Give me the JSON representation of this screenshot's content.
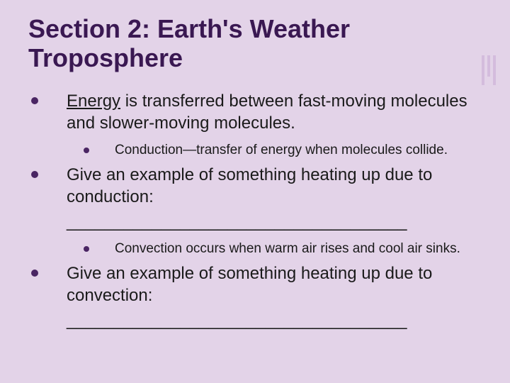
{
  "title": "Section 2: Earth's Weather Troposphere",
  "bullets": {
    "p1_lead": "Energy",
    "p1_rest": " is transferred between fast-moving molecules and slower-moving molecules.",
    "p1_sub": "Conduction—transfer of energy when molecules collide.",
    "p2": "Give an example of something heating up due to conduction:",
    "p2_blank": "____________________________________",
    "p2_sub": "Convection occurs when warm air rises and cool air sinks.",
    "p3": "Give an example of something heating up due to convection:",
    "p3_blank": "____________________________________"
  },
  "colors": {
    "background": "#e3d3e8",
    "title": "#3a1852",
    "bullet": "#4a2563",
    "text": "#1a1a1a"
  },
  "typography": {
    "title_fontsize": 36,
    "title_weight": "bold",
    "l1_fontsize": 24,
    "l2_fontsize": 19,
    "font_family": "Arial"
  }
}
